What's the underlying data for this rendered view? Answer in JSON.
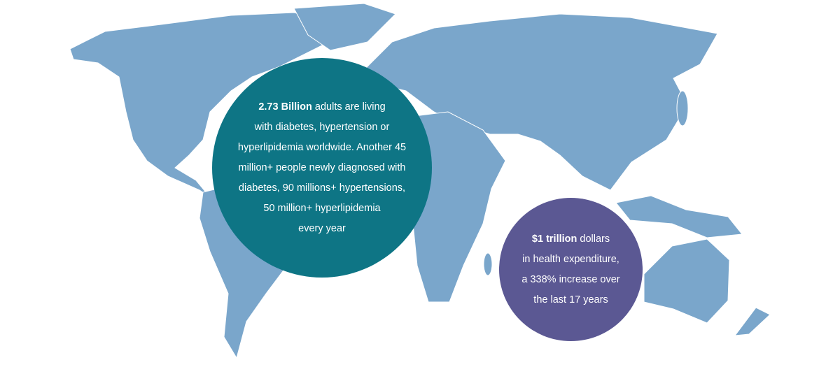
{
  "callouts": [
    {
      "highlight": "2.73 Billion",
      "lines": [
        "adults are living",
        "with diabetes, hypertension or",
        "hyperlipidemia worldwide. Another 45",
        "million+ people newly diagnosed with",
        "diabetes, 90 millions+ hypertensions,",
        "50 million+ hyperlipidemia",
        "every year"
      ]
    },
    {
      "highlight": "$1 trillion",
      "lines": [
        "dollars",
        "in health expenditure,",
        "a 338% increase over",
        "the last 17 years"
      ]
    }
  ]
}
